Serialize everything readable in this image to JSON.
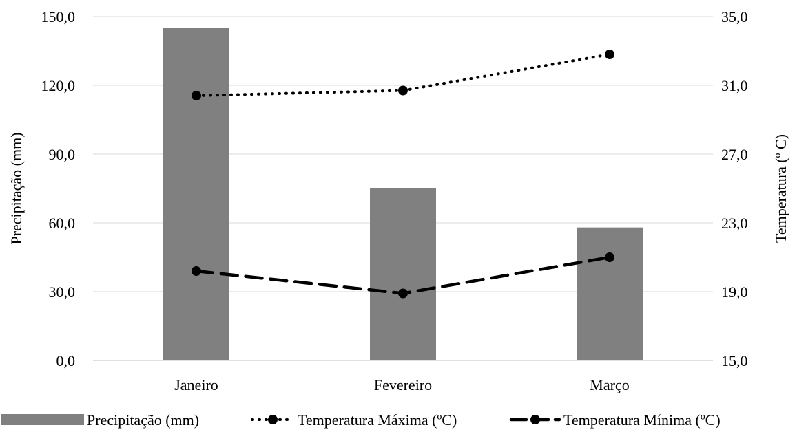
{
  "chart_data": {
    "type": "bar",
    "categories": [
      "Janeiro",
      "Fevereiro",
      "Março"
    ],
    "series": [
      {
        "name": "Precipitação (mm)",
        "type": "bar",
        "axis": "left",
        "color": "#808080",
        "values": [
          145.0,
          75.0,
          58.0
        ]
      },
      {
        "name": "Temperatura Máxima (ºC)",
        "type": "line",
        "style": "dotted",
        "axis": "right",
        "color": "#000000",
        "values": [
          30.4,
          30.7,
          32.8
        ]
      },
      {
        "name": "Temperatura Mínima (ºC)",
        "type": "line",
        "style": "dashed",
        "axis": "right",
        "color": "#000000",
        "values": [
          20.2,
          18.9,
          21.0
        ]
      }
    ],
    "ylabel": "Precipitação (mm)",
    "y2label": "Temperatura (º C)",
    "ylim": [
      0,
      150
    ],
    "y2lim": [
      15,
      35
    ],
    "yticks": [
      "0,0",
      "30,0",
      "60,0",
      "90,0",
      "120,0",
      "150,0"
    ],
    "y2ticks": [
      "15,0",
      "19,0",
      "23,0",
      "27,0",
      "31,0",
      "35,0"
    ],
    "grid": true,
    "legend_position": "bottom"
  }
}
